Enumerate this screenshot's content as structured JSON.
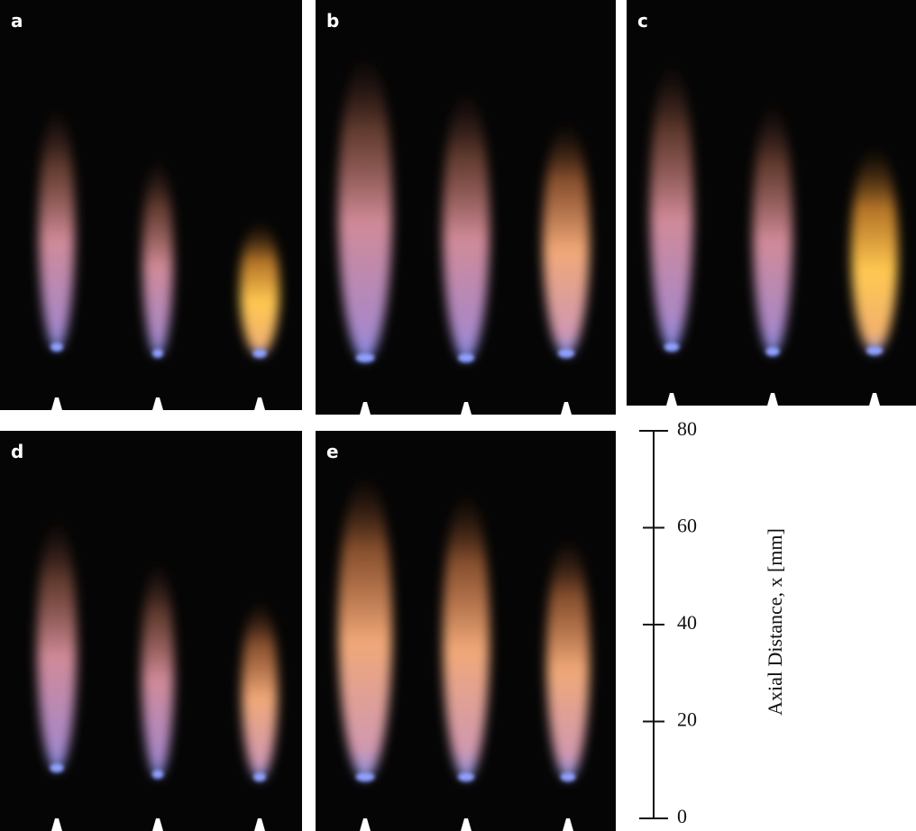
{
  "panels": [
    {
      "label": "a"
    },
    {
      "label": "b"
    },
    {
      "label": "c"
    },
    {
      "label": "d"
    },
    {
      "label": "e"
    }
  ],
  "scale_bar": {
    "label": "Axial Distance, x [mm]",
    "range": [
      0,
      80
    ],
    "ticks": [
      0,
      20,
      40,
      60,
      80
    ]
  }
}
